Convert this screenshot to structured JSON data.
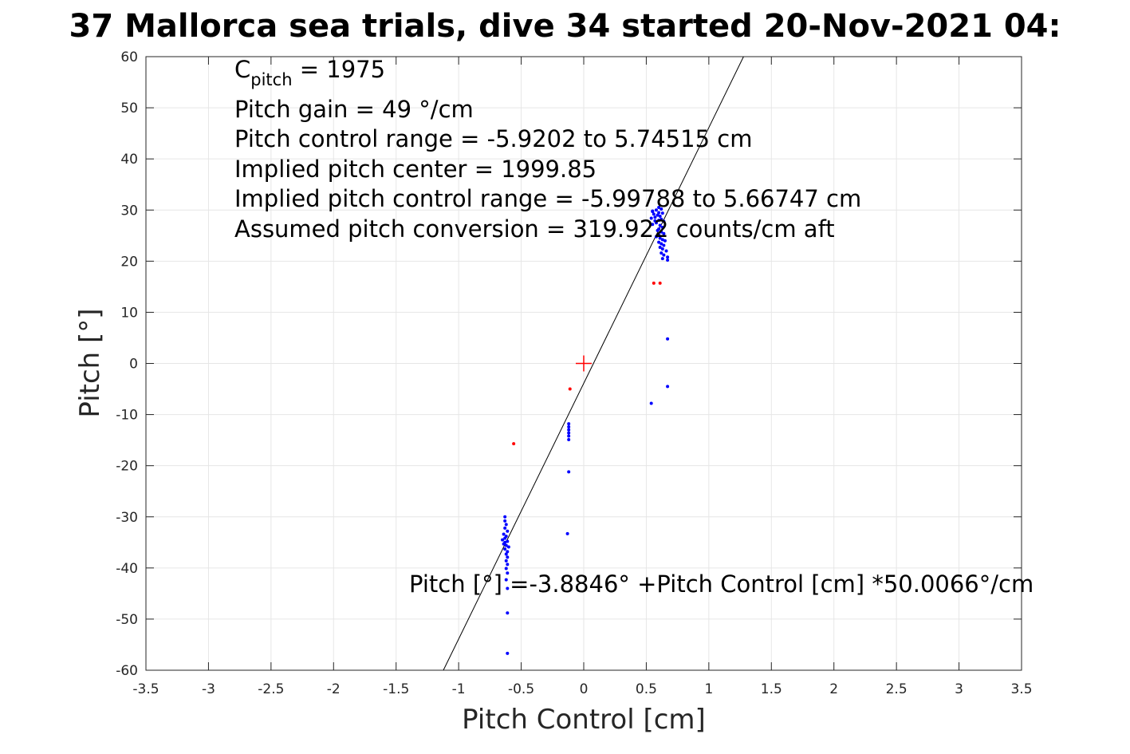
{
  "chart_data": {
    "type": "scatter",
    "title": "37 Mallorca sea trials, dive 34 started 20-Nov-2021 04:",
    "xlabel": "Pitch Control [cm]",
    "ylabel": "Pitch [°]",
    "xlim": [
      -3.5,
      3.5
    ],
    "ylim": [
      -60,
      60
    ],
    "grid": true,
    "x_ticks": [
      -3.5,
      -3,
      -2.5,
      -2,
      -1.5,
      -1,
      -0.5,
      0,
      0.5,
      1,
      1.5,
      2,
      2.5,
      3,
      3.5
    ],
    "x_tick_labels": [
      "-3.5",
      "-3",
      "-2.5",
      "-2",
      "-1.5",
      "-1",
      "-0.5",
      "0",
      "0.5",
      "1",
      "1.5",
      "2",
      "2.5",
      "3",
      "3.5"
    ],
    "y_ticks": [
      -60,
      -50,
      -40,
      -30,
      -20,
      -10,
      0,
      10,
      20,
      30,
      40,
      50,
      60
    ],
    "y_tick_labels": [
      "-60",
      "-50",
      "-40",
      "-30",
      "-20",
      "-10",
      "0",
      "10",
      "20",
      "30",
      "40",
      "50",
      "60"
    ],
    "colors": {
      "blue_points": "#0000ff",
      "red_points": "#ff0000",
      "fit_line": "#000000",
      "center_marker": "#ff0000",
      "grid": "#e6e6e6",
      "axes": "#262626"
    },
    "annotations": {
      "cpitch_main": "C",
      "cpitch_sub": "pitch",
      "cpitch_value": " = 1975",
      "pitch_gain": "Pitch gain = 49 °/cm",
      "control_range": "Pitch control range = -5.9202 to 5.74515 cm",
      "implied_center": "Implied pitch center = 1999.85",
      "implied_range": "Implied pitch control range = -5.99788 to 5.66747 cm",
      "conversion": "Assumed pitch conversion = 319.922 counts/cm aft",
      "fit_equation": "Pitch [°] =-3.8846° +Pitch Control [cm] *50.0066°/cm"
    },
    "fit": {
      "intercept": -3.8846,
      "slope": 50.0066
    },
    "center_marker": {
      "x": 0,
      "y": 0
    },
    "series": [
      {
        "color": "#0000ff",
        "points": [
          [
            0.6,
            30.5
          ],
          [
            0.62,
            30.2
          ],
          [
            0.58,
            30.0
          ],
          [
            0.55,
            29.7
          ],
          [
            0.6,
            29.5
          ],
          [
            0.63,
            29.4
          ],
          [
            0.56,
            29.2
          ],
          [
            0.59,
            29.0
          ],
          [
            0.61,
            28.8
          ],
          [
            0.57,
            28.6
          ],
          [
            0.54,
            28.4
          ],
          [
            0.62,
            28.2
          ],
          [
            0.6,
            28.0
          ],
          [
            0.64,
            27.8
          ],
          [
            0.58,
            27.5
          ],
          [
            0.55,
            27.2
          ],
          [
            0.61,
            27.0
          ],
          [
            0.63,
            26.6
          ],
          [
            0.6,
            26.3
          ],
          [
            0.59,
            26.0
          ],
          [
            0.62,
            25.7
          ],
          [
            0.64,
            25.4
          ],
          [
            0.6,
            25.1
          ],
          [
            0.58,
            24.8
          ],
          [
            0.61,
            24.5
          ],
          [
            0.63,
            24.2
          ],
          [
            0.65,
            24.0
          ],
          [
            0.6,
            23.7
          ],
          [
            0.62,
            23.4
          ],
          [
            0.64,
            23.1
          ],
          [
            0.61,
            22.7
          ],
          [
            0.63,
            22.4
          ],
          [
            0.66,
            22.0
          ],
          [
            0.62,
            21.6
          ],
          [
            0.64,
            21.2
          ],
          [
            0.67,
            20.8
          ],
          [
            0.63,
            20.5
          ],
          [
            0.67,
            20.2
          ],
          [
            0.55,
            29.8
          ],
          [
            0.57,
            27.9
          ],
          [
            0.67,
            4.8
          ],
          [
            0.67,
            -4.5
          ],
          [
            0.54,
            -7.8
          ],
          [
            -0.12,
            -11.8
          ],
          [
            -0.12,
            -12.4
          ],
          [
            -0.12,
            -13.0
          ],
          [
            -0.12,
            -13.6
          ],
          [
            -0.12,
            -14.2
          ],
          [
            -0.12,
            -14.9
          ],
          [
            -0.12,
            -21.2
          ],
          [
            -0.13,
            -33.3
          ],
          [
            -0.63,
            -30.0
          ],
          [
            -0.63,
            -30.8
          ],
          [
            -0.62,
            -31.5
          ],
          [
            -0.63,
            -32.2
          ],
          [
            -0.61,
            -32.8
          ],
          [
            -0.64,
            -33.4
          ],
          [
            -0.62,
            -33.8
          ],
          [
            -0.63,
            -34.2
          ],
          [
            -0.65,
            -34.5
          ],
          [
            -0.61,
            -34.8
          ],
          [
            -0.63,
            -35.0
          ],
          [
            -0.64,
            -35.3
          ],
          [
            -0.62,
            -35.6
          ],
          [
            -0.6,
            -35.9
          ],
          [
            -0.63,
            -36.3
          ],
          [
            -0.61,
            -36.8
          ],
          [
            -0.62,
            -37.3
          ],
          [
            -0.61,
            -37.9
          ],
          [
            -0.62,
            -38.6
          ],
          [
            -0.61,
            -39.3
          ],
          [
            -0.62,
            -40.1
          ],
          [
            -0.61,
            -41.0
          ],
          [
            -0.62,
            -42.3
          ],
          [
            -0.61,
            -44.0
          ],
          [
            -0.61,
            -48.8
          ],
          [
            -0.61,
            -56.7
          ]
        ]
      },
      {
        "color": "#ff0000",
        "points": [
          [
            0.56,
            15.7
          ],
          [
            0.61,
            15.7
          ],
          [
            -0.11,
            -5.0
          ],
          [
            -0.56,
            -15.7
          ]
        ]
      }
    ]
  }
}
